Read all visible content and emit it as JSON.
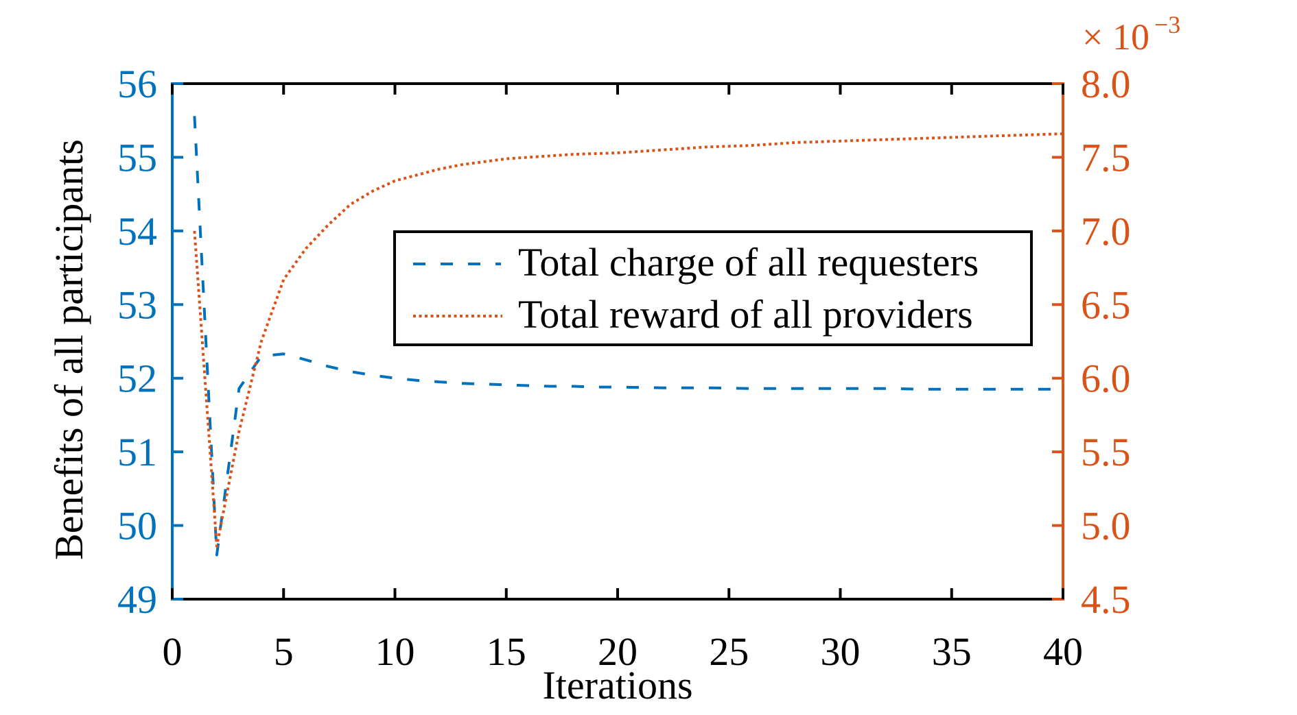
{
  "chart_data": {
    "type": "line",
    "title": "",
    "xlabel": "Iterations",
    "ylabel": "Benefits of all participants",
    "y2label": "",
    "y2_multiplier": "× 10",
    "y2_exponent": "−3",
    "xlim": [
      0,
      40
    ],
    "ylim": [
      49,
      56
    ],
    "y2lim": [
      4.5,
      8.0
    ],
    "grid": false,
    "legend_position": "center-right inside",
    "x_ticks": [
      0,
      5,
      10,
      15,
      20,
      25,
      30,
      35,
      40
    ],
    "x_tick_labels": [
      "0",
      "5",
      "10",
      "15",
      "20",
      "25",
      "30",
      "35",
      "40"
    ],
    "y_ticks": [
      49,
      50,
      51,
      52,
      53,
      54,
      55,
      56
    ],
    "y_tick_labels": [
      "49",
      "50",
      "51",
      "52",
      "53",
      "54",
      "55",
      "56"
    ],
    "y2_ticks": [
      4.5,
      5.0,
      5.5,
      6.0,
      6.5,
      7.0,
      7.5,
      8.0
    ],
    "y2_tick_labels": [
      "4.5",
      "5.0",
      "5.5",
      "6.0",
      "6.5",
      "7.0",
      "7.5",
      "8.0"
    ],
    "colors": {
      "left_axis": "#0072BD",
      "right_axis": "#D95319",
      "frame": "#000000"
    },
    "series": [
      {
        "name": "Total charge of all requesters",
        "axis": "left",
        "style": "dashed",
        "color": "#0072BD",
        "x": [
          1,
          2,
          3,
          4,
          5,
          6,
          7,
          8,
          9,
          10,
          11,
          12,
          13,
          14,
          15,
          16,
          17,
          18,
          19,
          20,
          22,
          24,
          26,
          28,
          30,
          32,
          34,
          36,
          38,
          40
        ],
        "values": [
          55.56,
          49.6,
          51.86,
          52.3,
          52.33,
          52.25,
          52.16,
          52.09,
          52.04,
          52.0,
          51.97,
          51.95,
          51.93,
          51.92,
          51.91,
          51.9,
          51.89,
          51.89,
          51.88,
          51.88,
          51.87,
          51.87,
          51.86,
          51.86,
          51.86,
          51.86,
          51.85,
          51.85,
          51.85,
          51.85
        ]
      },
      {
        "name": "Total reward of all providers",
        "axis": "right",
        "style": "dotted",
        "color": "#D95319",
        "unit_scale": "1e-3",
        "x": [
          1,
          2,
          3,
          4,
          5,
          6,
          7,
          8,
          9,
          10,
          11,
          12,
          13,
          14,
          15,
          16,
          17,
          18,
          19,
          20,
          22,
          24,
          26,
          28,
          30,
          32,
          34,
          36,
          38,
          40
        ],
        "values": [
          7.0,
          4.86,
          5.64,
          6.25,
          6.67,
          6.88,
          7.04,
          7.18,
          7.27,
          7.34,
          7.38,
          7.42,
          7.45,
          7.47,
          7.49,
          7.5,
          7.51,
          7.52,
          7.525,
          7.53,
          7.55,
          7.57,
          7.58,
          7.6,
          7.61,
          7.62,
          7.63,
          7.64,
          7.65,
          7.66
        ]
      }
    ]
  },
  "legend": {
    "items": [
      {
        "label": "Total charge of all requesters"
      },
      {
        "label": "Total reward of all providers"
      }
    ]
  }
}
